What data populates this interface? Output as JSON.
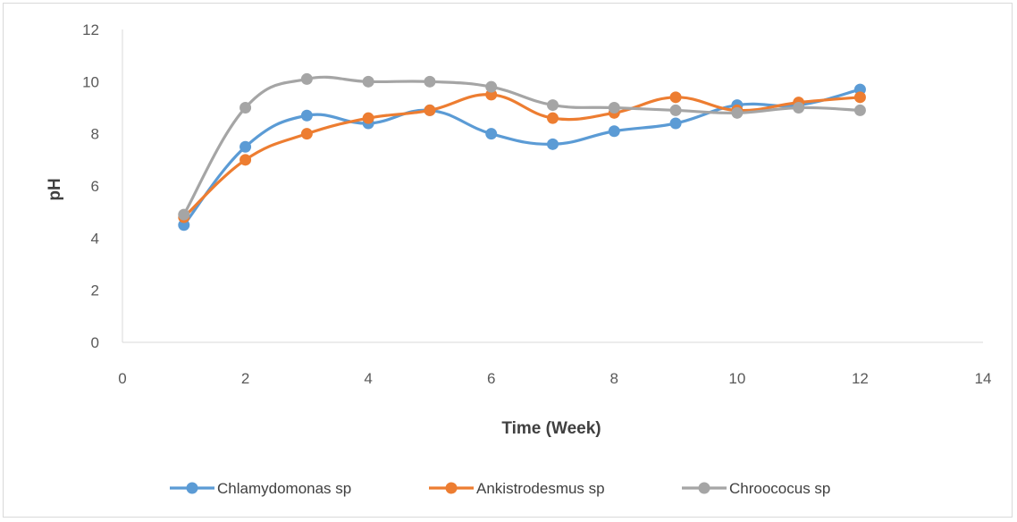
{
  "chart_data": {
    "type": "line",
    "title": "",
    "xlabel": "Time (Week)",
    "ylabel": "pH",
    "xlim": [
      0,
      14
    ],
    "ylim": [
      0,
      12
    ],
    "x_ticks": [
      0,
      2,
      4,
      6,
      8,
      10,
      12,
      14
    ],
    "y_ticks": [
      0,
      2,
      4,
      6,
      8,
      10,
      12
    ],
    "grid": false,
    "legend_position": "bottom",
    "smoothed": true,
    "x": [
      1,
      2,
      3,
      4,
      5,
      6,
      7,
      8,
      9,
      10,
      11,
      12
    ],
    "series": [
      {
        "name": "Chlamydomonas sp",
        "color": "#5b9bd5",
        "values": [
          4.5,
          7.5,
          8.7,
          8.4,
          8.9,
          8.0,
          7.6,
          8.1,
          8.4,
          9.1,
          9.1,
          9.7
        ]
      },
      {
        "name": "Ankistrodesmus sp",
        "color": "#ed7d31",
        "values": [
          4.8,
          7.0,
          8.0,
          8.6,
          8.9,
          9.5,
          8.6,
          8.8,
          9.4,
          8.9,
          9.2,
          9.4
        ]
      },
      {
        "name": "Chroococus sp",
        "color": "#a5a5a5",
        "values": [
          4.9,
          9.0,
          10.1,
          10.0,
          10.0,
          9.8,
          9.1,
          9.0,
          8.9,
          8.8,
          9.0,
          8.9
        ]
      }
    ],
    "axis_color": "#d9d9d9"
  }
}
